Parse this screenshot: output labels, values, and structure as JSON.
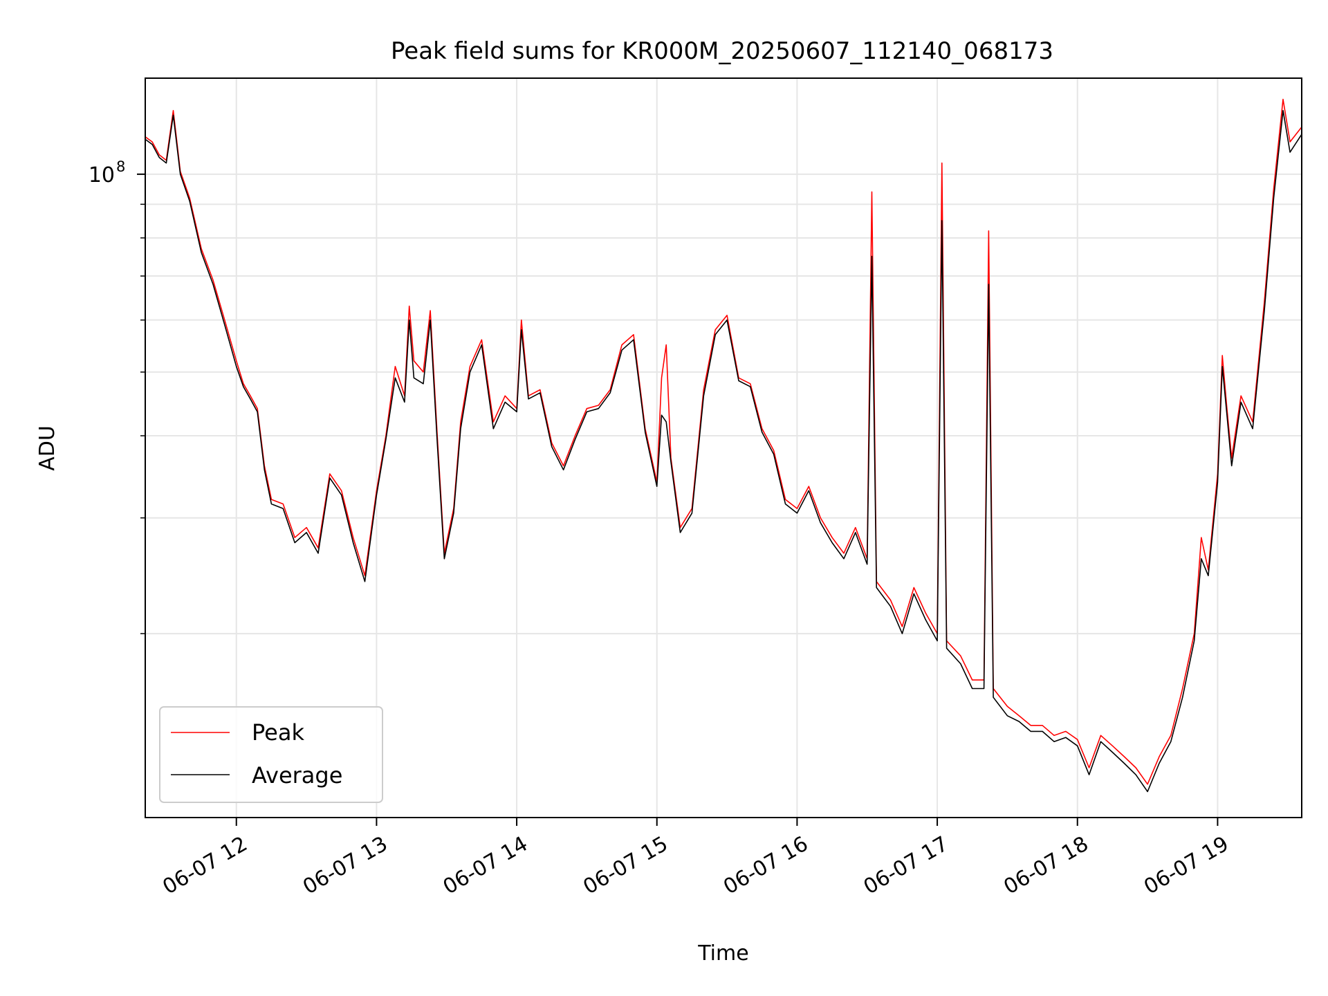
{
  "chart_data": {
    "type": "line",
    "title": "Peak field sums for KR000M_20250607_112140_068173",
    "xlabel": "Time",
    "ylabel": "ADU",
    "y_scale": "log",
    "ylim": [
      10500000,
      140000000
    ],
    "xlim": [
      "06-07 11:21",
      "06-07 19:36"
    ],
    "x_tick_labels": [
      "06-07 12",
      "06-07 13",
      "06-07 14",
      "06-07 15",
      "06-07 16",
      "06-07 17",
      "06-07 18",
      "06-07 19"
    ],
    "x_tick_times": [
      "06-07 12:00",
      "06-07 13:00",
      "06-07 14:00",
      "06-07 15:00",
      "06-07 16:00",
      "06-07 17:00",
      "06-07 18:00",
      "06-07 19:00"
    ],
    "y_major_ticks": [
      {
        "value": 100000000,
        "label": "10",
        "exp": "8"
      }
    ],
    "y_minor_ticks": [
      20000000,
      30000000,
      40000000,
      50000000,
      60000000,
      70000000,
      80000000,
      90000000
    ],
    "grid": true,
    "legend_position": "lower-left",
    "series": [
      {
        "name": "Peak",
        "color": "#ff0000",
        "points": [
          [
            "06-07 11:21",
            114000000
          ],
          [
            "06-07 11:24",
            112000000
          ],
          [
            "06-07 11:27",
            107000000
          ],
          [
            "06-07 11:30",
            105000000
          ],
          [
            "06-07 11:33",
            125000000
          ],
          [
            "06-07 11:36",
            101000000
          ],
          [
            "06-07 11:40",
            92000000
          ],
          [
            "06-07 11:45",
            77000000
          ],
          [
            "06-07 11:50",
            69000000
          ],
          [
            "06-07 11:55",
            60000000
          ],
          [
            "06-07 12:00",
            52000000
          ],
          [
            "06-07 12:03",
            48000000
          ],
          [
            "06-07 12:06",
            46000000
          ],
          [
            "06-07 12:09",
            44000000
          ],
          [
            "06-07 12:12",
            36000000
          ],
          [
            "06-07 12:15",
            32000000
          ],
          [
            "06-07 12:20",
            31500000
          ],
          [
            "06-07 12:25",
            28000000
          ],
          [
            "06-07 12:30",
            29000000
          ],
          [
            "06-07 12:35",
            27000000
          ],
          [
            "06-07 12:40",
            35000000
          ],
          [
            "06-07 12:45",
            33000000
          ],
          [
            "06-07 12:50",
            28000000
          ],
          [
            "06-07 12:55",
            24500000
          ],
          [
            "06-07 13:00",
            33000000
          ],
          [
            "06-07 13:04",
            40000000
          ],
          [
            "06-07 13:08",
            51000000
          ],
          [
            "06-07 13:12",
            46000000
          ],
          [
            "06-07 13:14",
            63000000
          ],
          [
            "06-07 13:16",
            52000000
          ],
          [
            "06-07 13:20",
            50000000
          ],
          [
            "06-07 13:23",
            62000000
          ],
          [
            "06-07 13:26",
            40000000
          ],
          [
            "06-07 13:29",
            26500000
          ],
          [
            "06-07 13:33",
            31000000
          ],
          [
            "06-07 13:36",
            42000000
          ],
          [
            "06-07 13:40",
            51000000
          ],
          [
            "06-07 13:45",
            56000000
          ],
          [
            "06-07 13:50",
            42000000
          ],
          [
            "06-07 13:55",
            46000000
          ],
          [
            "06-07 14:00",
            44000000
          ],
          [
            "06-07 14:02",
            60000000
          ],
          [
            "06-07 14:05",
            46000000
          ],
          [
            "06-07 14:10",
            47000000
          ],
          [
            "06-07 14:15",
            39000000
          ],
          [
            "06-07 14:20",
            36000000
          ],
          [
            "06-07 14:25",
            40000000
          ],
          [
            "06-07 14:30",
            44000000
          ],
          [
            "06-07 14:35",
            44500000
          ],
          [
            "06-07 14:40",
            47000000
          ],
          [
            "06-07 14:45",
            55000000
          ],
          [
            "06-07 14:50",
            57000000
          ],
          [
            "06-07 14:55",
            41000000
          ],
          [
            "06-07 15:00",
            34000000
          ],
          [
            "06-07 15:02",
            49000000
          ],
          [
            "06-07 15:04",
            55000000
          ],
          [
            "06-07 15:06",
            37000000
          ],
          [
            "06-07 15:10",
            29000000
          ],
          [
            "06-07 15:15",
            31000000
          ],
          [
            "06-07 15:20",
            47000000
          ],
          [
            "06-07 15:25",
            58000000
          ],
          [
            "06-07 15:30",
            61000000
          ],
          [
            "06-07 15:35",
            49000000
          ],
          [
            "06-07 15:40",
            48000000
          ],
          [
            "06-07 15:45",
            41000000
          ],
          [
            "06-07 15:50",
            38000000
          ],
          [
            "06-07 15:55",
            32000000
          ],
          [
            "06-07 16:00",
            31000000
          ],
          [
            "06-07 16:05",
            33500000
          ],
          [
            "06-07 16:10",
            30000000
          ],
          [
            "06-07 16:15",
            28000000
          ],
          [
            "06-07 16:20",
            26500000
          ],
          [
            "06-07 16:25",
            29000000
          ],
          [
            "06-07 16:30",
            26000000
          ],
          [
            "06-07 16:32",
            94000000
          ],
          [
            "06-07 16:34",
            24000000
          ],
          [
            "06-07 16:40",
            22500000
          ],
          [
            "06-07 16:45",
            20500000
          ],
          [
            "06-07 16:50",
            23500000
          ],
          [
            "06-07 16:55",
            21500000
          ],
          [
            "06-07 17:00",
            20000000
          ],
          [
            "06-07 17:02",
            104000000
          ],
          [
            "06-07 17:04",
            19500000
          ],
          [
            "06-07 17:10",
            18500000
          ],
          [
            "06-07 17:15",
            17000000
          ],
          [
            "06-07 17:20",
            17000000
          ],
          [
            "06-07 17:22",
            82000000
          ],
          [
            "06-07 17:24",
            16500000
          ],
          [
            "06-07 17:30",
            15500000
          ],
          [
            "06-07 17:35",
            15000000
          ],
          [
            "06-07 17:40",
            14500000
          ],
          [
            "06-07 17:45",
            14500000
          ],
          [
            "06-07 17:50",
            14000000
          ],
          [
            "06-07 17:55",
            14200000
          ],
          [
            "06-07 18:00",
            13800000
          ],
          [
            "06-07 18:05",
            12500000
          ],
          [
            "06-07 18:10",
            14000000
          ],
          [
            "06-07 18:15",
            13500000
          ],
          [
            "06-07 18:20",
            13000000
          ],
          [
            "06-07 18:25",
            12500000
          ],
          [
            "06-07 18:30",
            11800000
          ],
          [
            "06-07 18:35",
            13000000
          ],
          [
            "06-07 18:40",
            14000000
          ],
          [
            "06-07 18:45",
            16500000
          ],
          [
            "06-07 18:50",
            20000000
          ],
          [
            "06-07 18:53",
            28000000
          ],
          [
            "06-07 18:56",
            25000000
          ],
          [
            "06-07 19:00",
            35000000
          ],
          [
            "06-07 19:02",
            53000000
          ],
          [
            "06-07 19:04",
            44000000
          ],
          [
            "06-07 19:06",
            37000000
          ],
          [
            "06-07 19:10",
            46000000
          ],
          [
            "06-07 19:15",
            42000000
          ],
          [
            "06-07 19:20",
            64000000
          ],
          [
            "06-07 19:24",
            95000000
          ],
          [
            "06-07 19:28",
            130000000
          ],
          [
            "06-07 19:31",
            112000000
          ],
          [
            "06-07 19:36",
            118000000
          ]
        ]
      },
      {
        "name": "Average",
        "color": "#000000",
        "points": [
          [
            "06-07 11:21",
            113000000
          ],
          [
            "06-07 11:24",
            111000000
          ],
          [
            "06-07 11:27",
            106000000
          ],
          [
            "06-07 11:30",
            104000000
          ],
          [
            "06-07 11:33",
            123000000
          ],
          [
            "06-07 11:36",
            100000000
          ],
          [
            "06-07 11:40",
            91000000
          ],
          [
            "06-07 11:45",
            76000000
          ],
          [
            "06-07 11:50",
            68000000
          ],
          [
            "06-07 11:55",
            59000000
          ],
          [
            "06-07 12:00",
            51000000
          ],
          [
            "06-07 12:03",
            47500000
          ],
          [
            "06-07 12:06",
            45500000
          ],
          [
            "06-07 12:09",
            43500000
          ],
          [
            "06-07 12:12",
            35500000
          ],
          [
            "06-07 12:15",
            31500000
          ],
          [
            "06-07 12:20",
            31000000
          ],
          [
            "06-07 12:25",
            27500000
          ],
          [
            "06-07 12:30",
            28500000
          ],
          [
            "06-07 12:35",
            26500000
          ],
          [
            "06-07 12:40",
            34500000
          ],
          [
            "06-07 12:45",
            32500000
          ],
          [
            "06-07 12:50",
            27500000
          ],
          [
            "06-07 12:55",
            24000000
          ],
          [
            "06-07 13:00",
            32500000
          ],
          [
            "06-07 13:04",
            39500000
          ],
          [
            "06-07 13:08",
            49000000
          ],
          [
            "06-07 13:12",
            45000000
          ],
          [
            "06-07 13:14",
            60000000
          ],
          [
            "06-07 13:16",
            49000000
          ],
          [
            "06-07 13:20",
            48000000
          ],
          [
            "06-07 13:23",
            60000000
          ],
          [
            "06-07 13:26",
            39000000
          ],
          [
            "06-07 13:29",
            26000000
          ],
          [
            "06-07 13:33",
            30500000
          ],
          [
            "06-07 13:36",
            41000000
          ],
          [
            "06-07 13:40",
            50000000
          ],
          [
            "06-07 13:45",
            55000000
          ],
          [
            "06-07 13:50",
            41000000
          ],
          [
            "06-07 13:55",
            45000000
          ],
          [
            "06-07 14:00",
            43500000
          ],
          [
            "06-07 14:02",
            58000000
          ],
          [
            "06-07 14:05",
            45500000
          ],
          [
            "06-07 14:10",
            46500000
          ],
          [
            "06-07 14:15",
            38500000
          ],
          [
            "06-07 14:20",
            35500000
          ],
          [
            "06-07 14:25",
            39500000
          ],
          [
            "06-07 14:30",
            43500000
          ],
          [
            "06-07 14:35",
            44000000
          ],
          [
            "06-07 14:40",
            46500000
          ],
          [
            "06-07 14:45",
            54000000
          ],
          [
            "06-07 14:50",
            56000000
          ],
          [
            "06-07 14:55",
            40500000
          ],
          [
            "06-07 15:00",
            33500000
          ],
          [
            "06-07 15:02",
            43000000
          ],
          [
            "06-07 15:04",
            42000000
          ],
          [
            "06-07 15:06",
            36500000
          ],
          [
            "06-07 15:10",
            28500000
          ],
          [
            "06-07 15:15",
            30500000
          ],
          [
            "06-07 15:20",
            46000000
          ],
          [
            "06-07 15:25",
            57000000
          ],
          [
            "06-07 15:30",
            60000000
          ],
          [
            "06-07 15:35",
            48500000
          ],
          [
            "06-07 15:40",
            47500000
          ],
          [
            "06-07 15:45",
            40500000
          ],
          [
            "06-07 15:50",
            37500000
          ],
          [
            "06-07 15:55",
            31500000
          ],
          [
            "06-07 16:00",
            30500000
          ],
          [
            "06-07 16:05",
            33000000
          ],
          [
            "06-07 16:10",
            29500000
          ],
          [
            "06-07 16:15",
            27500000
          ],
          [
            "06-07 16:20",
            26000000
          ],
          [
            "06-07 16:25",
            28500000
          ],
          [
            "06-07 16:30",
            25500000
          ],
          [
            "06-07 16:32",
            75000000
          ],
          [
            "06-07 16:34",
            23500000
          ],
          [
            "06-07 16:40",
            22000000
          ],
          [
            "06-07 16:45",
            20000000
          ],
          [
            "06-07 16:50",
            23000000
          ],
          [
            "06-07 16:55",
            21000000
          ],
          [
            "06-07 17:00",
            19500000
          ],
          [
            "06-07 17:02",
            85000000
          ],
          [
            "06-07 17:04",
            19000000
          ],
          [
            "06-07 17:10",
            18000000
          ],
          [
            "06-07 17:15",
            16500000
          ],
          [
            "06-07 17:20",
            16500000
          ],
          [
            "06-07 17:22",
            68000000
          ],
          [
            "06-07 17:24",
            16000000
          ],
          [
            "06-07 17:30",
            15000000
          ],
          [
            "06-07 17:35",
            14700000
          ],
          [
            "06-07 17:40",
            14200000
          ],
          [
            "06-07 17:45",
            14200000
          ],
          [
            "06-07 17:50",
            13700000
          ],
          [
            "06-07 17:55",
            13900000
          ],
          [
            "06-07 18:00",
            13500000
          ],
          [
            "06-07 18:05",
            12200000
          ],
          [
            "06-07 18:10",
            13700000
          ],
          [
            "06-07 18:15",
            13200000
          ],
          [
            "06-07 18:20",
            12700000
          ],
          [
            "06-07 18:25",
            12200000
          ],
          [
            "06-07 18:30",
            11500000
          ],
          [
            "06-07 18:35",
            12700000
          ],
          [
            "06-07 18:40",
            13700000
          ],
          [
            "06-07 18:45",
            16000000
          ],
          [
            "06-07 18:50",
            19500000
          ],
          [
            "06-07 18:53",
            26000000
          ],
          [
            "06-07 18:56",
            24500000
          ],
          [
            "06-07 19:00",
            34000000
          ],
          [
            "06-07 19:02",
            51000000
          ],
          [
            "06-07 19:04",
            43000000
          ],
          [
            "06-07 19:06",
            36000000
          ],
          [
            "06-07 19:10",
            45000000
          ],
          [
            "06-07 19:15",
            41000000
          ],
          [
            "06-07 19:20",
            62000000
          ],
          [
            "06-07 19:24",
            92000000
          ],
          [
            "06-07 19:28",
            125000000
          ],
          [
            "06-07 19:31",
            108000000
          ],
          [
            "06-07 19:36",
            115000000
          ]
        ]
      }
    ]
  }
}
